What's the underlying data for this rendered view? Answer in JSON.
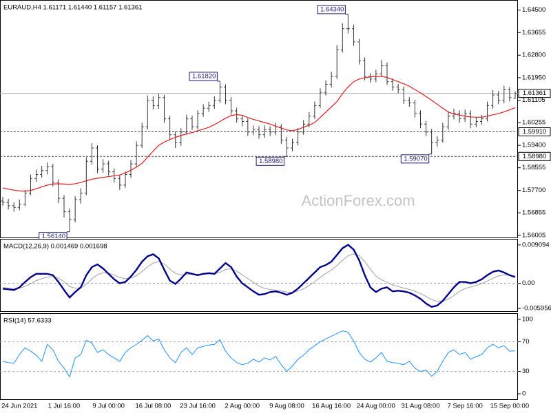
{
  "chart_data": [
    {
      "type": "ohlc",
      "title": "EURAUD,H4  1.61171 1.61440 1.61157 1.61361",
      "watermark": "ActionForex.com",
      "color": "#333333",
      "categories": [
        null,
        null,
        null,
        "24 Jun 2021",
        null,
        null,
        null,
        null,
        null,
        null,
        null,
        "1 Jul 16:00",
        null,
        null,
        null,
        null,
        null,
        null,
        null,
        "9 Jul 00:00",
        null,
        null,
        null,
        null,
        null,
        null,
        null,
        "16 Jul 08:00",
        null,
        null,
        null,
        null,
        null,
        null,
        null,
        "23 Jul 16:00",
        null,
        null,
        null,
        null,
        null,
        null,
        null,
        "2 Aug 00:00",
        null,
        null,
        null,
        null,
        null,
        null,
        null,
        "9 Aug 08:00",
        null,
        null,
        null,
        null,
        null,
        null,
        null,
        "16 Aug 16:00",
        null,
        null,
        null,
        null,
        null,
        null,
        null,
        "24 Aug 00:00",
        null,
        null,
        null,
        null,
        null,
        null,
        null,
        "31 Aug 08:00",
        null,
        null,
        null,
        null,
        null,
        null,
        null,
        "7 Sep 16:00",
        null,
        null,
        null,
        null,
        null,
        null,
        null,
        "15 Sep 00:00",
        null
      ],
      "open": [
        1.573,
        1.5725,
        1.5712,
        1.5706,
        1.5718,
        1.576,
        1.5815,
        1.583,
        1.5845,
        1.586,
        1.58,
        1.574,
        1.569,
        1.566,
        1.5735,
        1.576,
        1.588,
        1.593,
        1.585,
        1.587,
        1.584,
        1.5815,
        1.579,
        1.583,
        1.587,
        1.594,
        1.601,
        1.611,
        1.609,
        1.612,
        1.604,
        1.598,
        1.595,
        1.599,
        1.604,
        1.601,
        1.606,
        1.608,
        1.609,
        1.611,
        1.616,
        1.611,
        1.607,
        1.604,
        1.603,
        1.599,
        1.6,
        1.598,
        1.6,
        1.599,
        1.601,
        1.596,
        1.593,
        1.595,
        1.599,
        1.602,
        1.605,
        1.609,
        1.614,
        1.617,
        1.62,
        1.63,
        1.638,
        1.638,
        1.633,
        1.626,
        1.62,
        1.619,
        1.621,
        1.624,
        1.618,
        1.616,
        1.615,
        1.611,
        1.61,
        1.606,
        1.602,
        1.599,
        1.595,
        1.596,
        1.601,
        1.605,
        1.606,
        1.604,
        1.606,
        1.602,
        1.603,
        1.604,
        1.609,
        1.613,
        1.611,
        1.615,
        1.61171
      ],
      "high": [
        1.5745,
        1.5738,
        1.5725,
        1.5735,
        1.5772,
        1.583,
        1.5848,
        1.5862,
        1.5875,
        1.587,
        1.5812,
        1.5752,
        1.5702,
        1.5748,
        1.5778,
        1.5895,
        1.5948,
        1.594,
        1.5888,
        1.5882,
        1.5852,
        1.5826,
        1.5842,
        1.5884,
        1.5955,
        1.6025,
        1.6128,
        1.6125,
        1.6135,
        1.613,
        1.6052,
        1.5992,
        1.6005,
        1.6055,
        1.6052,
        1.6072,
        1.6095,
        1.6105,
        1.6125,
        1.6182,
        1.617,
        1.6122,
        1.6082,
        1.6052,
        1.6042,
        1.6015,
        1.6012,
        1.6015,
        1.6012,
        1.6025,
        1.602,
        1.5972,
        1.5965,
        1.6005,
        1.6035,
        1.6065,
        1.6105,
        1.6155,
        1.6185,
        1.6218,
        1.6318,
        1.64,
        1.6434,
        1.6395,
        1.6342,
        1.6272,
        1.6212,
        1.6225,
        1.6262,
        1.6252,
        1.6192,
        1.6172,
        1.6162,
        1.6122,
        1.6112,
        1.6072,
        1.6032,
        1.6002,
        1.5975,
        1.6025,
        1.6065,
        1.6078,
        1.6072,
        1.6075,
        1.6072,
        1.6045,
        1.6055,
        1.6105,
        1.6148,
        1.6145,
        1.6165,
        1.616,
        1.6144
      ],
      "low": [
        1.5712,
        1.5698,
        1.569,
        1.5695,
        1.571,
        1.5752,
        1.5802,
        1.5818,
        1.583,
        1.5785,
        1.5722,
        1.5668,
        1.5614,
        1.565,
        1.572,
        1.5752,
        1.5868,
        1.5835,
        1.5836,
        1.5826,
        1.58,
        1.5772,
        1.578,
        1.5818,
        1.586,
        1.593,
        1.6,
        1.6075,
        1.6078,
        1.6025,
        1.5962,
        1.593,
        1.5938,
        1.598,
        1.5998,
        1.6,
        1.6048,
        1.6066,
        1.6078,
        1.61,
        1.6095,
        1.6055,
        1.6025,
        1.6012,
        1.5975,
        1.5978,
        1.5965,
        1.5968,
        1.5975,
        1.5978,
        1.5945,
        1.5898,
        1.5918,
        1.594,
        1.598,
        1.6008,
        1.604,
        1.608,
        1.6128,
        1.6158,
        1.619,
        1.629,
        1.6362,
        1.6315,
        1.6245,
        1.6185,
        1.6176,
        1.6178,
        1.6198,
        1.6168,
        1.6146,
        1.6136,
        1.6096,
        1.6085,
        1.6045,
        1.6005,
        1.5975,
        1.5907,
        1.5935,
        1.595,
        1.5998,
        1.6038,
        1.6025,
        1.6028,
        1.6005,
        1.6008,
        1.6018,
        1.603,
        1.6078,
        1.6095,
        1.6098,
        1.6105,
        1.61157
      ],
      "close": [
        1.5725,
        1.5712,
        1.5706,
        1.5718,
        1.576,
        1.5815,
        1.583,
        1.5845,
        1.586,
        1.58,
        1.574,
        1.569,
        1.566,
        1.5735,
        1.576,
        1.588,
        1.593,
        1.585,
        1.587,
        1.584,
        1.5815,
        1.579,
        1.583,
        1.587,
        1.594,
        1.601,
        1.611,
        1.609,
        1.612,
        1.604,
        1.598,
        1.595,
        1.599,
        1.604,
        1.601,
        1.606,
        1.608,
        1.609,
        1.611,
        1.616,
        1.611,
        1.607,
        1.604,
        1.603,
        1.599,
        1.6,
        1.598,
        1.6,
        1.599,
        1.601,
        1.596,
        1.593,
        1.595,
        1.599,
        1.602,
        1.605,
        1.609,
        1.614,
        1.617,
        1.62,
        1.63,
        1.638,
        1.638,
        1.633,
        1.626,
        1.62,
        1.619,
        1.621,
        1.624,
        1.618,
        1.616,
        1.615,
        1.611,
        1.61,
        1.606,
        1.602,
        1.599,
        1.595,
        1.596,
        1.601,
        1.605,
        1.606,
        1.604,
        1.606,
        1.602,
        1.603,
        1.604,
        1.609,
        1.613,
        1.611,
        1.615,
        1.612,
        1.61361
      ],
      "moving_average": {
        "color": "#e31a1c",
        "values": [
          1.5779,
          1.5775,
          1.5771,
          1.5768,
          1.5767,
          1.577,
          1.5776,
          1.5783,
          1.579,
          1.5794,
          1.5795,
          1.5794,
          1.5792,
          1.5795,
          1.58,
          1.5806,
          1.5812,
          1.5816,
          1.5819,
          1.5822,
          1.5825,
          1.5828,
          1.5836,
          1.5846,
          1.5858,
          1.5872,
          1.5895,
          1.5918,
          1.594,
          1.5952,
          1.5962,
          1.597,
          1.5977,
          1.5983,
          1.5988,
          1.5995,
          1.6001,
          1.6008,
          1.6018,
          1.603,
          1.6042,
          1.6052,
          1.6056,
          1.6053,
          1.6045,
          1.6038,
          1.6032,
          1.6026,
          1.602,
          1.6012,
          1.6005,
          1.5998,
          1.5995,
          1.6,
          1.6008,
          1.6016,
          1.6026,
          1.6045,
          1.6065,
          1.6085,
          1.6105,
          1.6135,
          1.616,
          1.618,
          1.619,
          1.6195,
          1.6198,
          1.62,
          1.62,
          1.6196,
          1.6188,
          1.618,
          1.6172,
          1.6163,
          1.615,
          1.6138,
          1.6124,
          1.611,
          1.6095,
          1.608,
          1.6066,
          1.6058,
          1.6054,
          1.605,
          1.6047,
          1.6046,
          1.6046,
          1.605,
          1.6055,
          1.606,
          1.6066,
          1.6074,
          1.6082
        ]
      },
      "levels": [
        {
          "value": 1.61361,
          "label": "1.61361",
          "style": "solid"
        },
        {
          "value": 1.5991,
          "label": "1.59910",
          "style": "dashed"
        },
        {
          "value": 1.5898,
          "label": "1.58980",
          "style": "dashed"
        }
      ],
      "annotations": [
        {
          "value": 1.6434,
          "label": "1.64340",
          "at": "high"
        },
        {
          "value": 1.6182,
          "label": "1.61820",
          "at": "high"
        },
        {
          "value": 1.5898,
          "label": "1.58980",
          "at": "low"
        },
        {
          "value": 1.5907,
          "label": "1.59070",
          "at": "low"
        },
        {
          "value": 1.5614,
          "label": "1.56140",
          "at": "low"
        }
      ],
      "ylim": [
        1.5595,
        1.6483
      ],
      "yticks": [
        {
          "value": 1.645,
          "label": "1.64500"
        },
        {
          "value": 1.63655,
          "label": "1.63655"
        },
        {
          "value": 1.628,
          "label": "1.62800"
        },
        {
          "value": 1.6195,
          "label": "1.61950"
        },
        {
          "value": 1.61105,
          "label": "1.61105"
        },
        {
          "value": 1.60255,
          "label": "1.60255"
        },
        {
          "value": 1.594,
          "label": "1.59400"
        },
        {
          "value": 1.58555,
          "label": "1.58555"
        },
        {
          "value": 1.577,
          "label": "1.57700"
        },
        {
          "value": 1.56855,
          "label": "1.56855"
        },
        {
          "value": 1.56005,
          "label": "1.56005"
        }
      ]
    },
    {
      "type": "macd",
      "title": "MACD(12,26,9) 0.001469 0.001698",
      "series": [
        {
          "color": "#00008b",
          "values": [
            -0.00128,
            -0.00144,
            -0.0016,
            -0.00096,
            0.00032,
            0.00144,
            0.00224,
            0.00224,
            0.00224,
            0.00192,
            0.00032,
            -0.0016,
            -0.00336,
            -0.00208,
            -0.00096,
            0.00192,
            0.00384,
            0.00448,
            0.00352,
            0.00224,
            0.00096,
            0,
            0.00032,
            0.0016,
            0.0032,
            0.00512,
            0.0064,
            0.00688,
            0.00592,
            0.0032,
            0.00064,
            -0.00016,
            0.00112,
            0.00256,
            0.00224,
            0.00192,
            0.00224,
            0.0024,
            0.00224,
            0.00352,
            0.0048,
            0.00384,
            0.0016,
            0,
            -0.00096,
            -0.00192,
            -0.00272,
            -0.00256,
            -0.00208,
            -0.00192,
            -0.00224,
            -0.00272,
            -0.00224,
            -0.00128,
            0,
            0.00128,
            0.00256,
            0.00384,
            0.00432,
            0.00512,
            0.00672,
            0.00832,
            0.00912,
            0.008,
            0.00544,
            0.00192,
            -0.00096,
            -0.00208,
            -0.00128,
            -0.00096,
            -0.00192,
            -0.00176,
            -0.00192,
            -0.00224,
            -0.00288,
            -0.00368,
            -0.0048,
            -0.0056,
            -0.00528,
            -0.00416,
            -0.00256,
            -0.00096,
            0.00032,
            0.00032,
            0,
            0.00032,
            0.00096,
            0.00192,
            0.00272,
            0.00304,
            0.00256,
            0.00192,
            0.001469
          ]
        },
        {
          "color": "#a0a0a0",
          "values": [
            -0.001,
            -0.00113,
            -0.00127,
            -0.00118,
            -0.00073,
            -8e-05,
            0.00062,
            0.00111,
            0.00145,
            0.00159,
            0.00121,
            0.00037,
            -0.00075,
            -0.00115,
            -0.00109,
            -0.00019,
            0.00102,
            0.00206,
            0.0025,
            0.00242,
            0.00198,
            0.00139,
            0.00107,
            0.00123,
            0.00182,
            0.00281,
            0.00389,
            0.00479,
            0.00513,
            0.00455,
            0.00338,
            0.00232,
            0.00196,
            0.00214,
            0.00217,
            0.0021,
            0.00214,
            0.00222,
            0.00222,
            0.00261,
            0.00327,
            0.00344,
            0.00289,
            0.00202,
            0.00113,
            0.00022,
            -0.00066,
            -0.00123,
            -0.00149,
            -0.00162,
            -0.00181,
            -0.00208,
            -0.00213,
            -0.00188,
            -0.00132,
            -0.00054,
            0.00039,
            0.00143,
            0.0023,
            0.00315,
            0.00422,
            0.00545,
            0.00655,
            0.00699,
            0.00653,
            0.00515,
            0.00332,
            0.0017,
            0.00081,
            0.00028,
            -0.00038,
            -0.00079,
            -0.00113,
            -0.00146,
            -0.00189,
            -0.00243,
            -0.00314,
            -0.00388,
            -0.0043,
            -0.00426,
            -0.00375,
            -0.00291,
            -0.00194,
            -0.00126,
            -0.00088,
            -0.00052,
            -8e-05,
            0.00052,
            0.00118,
            0.00174,
            0.00199,
            0.00197,
            0.001698
          ]
        }
      ],
      "levels": [
        0
      ],
      "ylim": [
        -0.00644,
        0.01021
      ],
      "yticks": [
        0.009094,
        {
          "value": 0,
          "label": "0.00"
        },
        -0.005956
      ]
    },
    {
      "type": "rsi",
      "title": "RSI(14) 57.6333",
      "color": "#1e90ff",
      "values": [
        43.6,
        41.8,
        40.9,
        52.7,
        61.8,
        57.3,
        51.8,
        43.6,
        66.4,
        59.1,
        43.6,
        34.5,
        22.7,
        48.2,
        52.7,
        71.8,
        68.2,
        55.5,
        59.1,
        52.7,
        48.2,
        43.6,
        55.5,
        61.8,
        66.4,
        71.8,
        78.2,
        70.9,
        73.6,
        59.1,
        48.2,
        41.8,
        55.5,
        61.8,
        52.7,
        61.8,
        63.6,
        65.5,
        66.4,
        72.7,
        57.3,
        48.2,
        41.8,
        39.1,
        40.9,
        46.4,
        42.7,
        48.2,
        45.5,
        50.0,
        39.1,
        30.0,
        37.3,
        46.4,
        51.8,
        59.1,
        64.5,
        70.0,
        73.6,
        77.3,
        80.9,
        84.5,
        82.7,
        70.9,
        55.5,
        46.4,
        42.7,
        48.2,
        55.5,
        43.6,
        41.8,
        40.9,
        39.1,
        43.6,
        34.5,
        30.0,
        31.8,
        23.6,
        30.0,
        43.6,
        55.5,
        59.1,
        52.7,
        55.5,
        46.4,
        50.0,
        52.7,
        61.8,
        66.4,
        61.8,
        64.5,
        57.3,
        57.6333
      ],
      "levels": [
        70,
        30
      ],
      "ylim": [
        -6.4,
        106.4
      ],
      "yticks": [
        100,
        70,
        30,
        0
      ]
    }
  ]
}
